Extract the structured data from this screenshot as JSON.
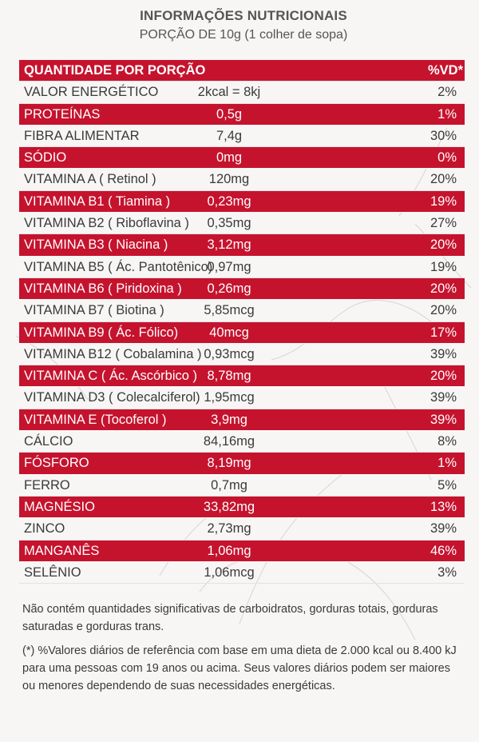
{
  "header": {
    "title": "INFORMAÇÕES NUTRICIONAIS",
    "subtitle": "PORÇÃO DE 10g (1 colher de sopa)"
  },
  "table": {
    "head": {
      "name": "QUANTIDADE POR PORÇÃO",
      "amount": "",
      "vd": "%VD*"
    },
    "rows": [
      {
        "name": "VALOR ENERGÉTICO",
        "amount": "2kcal = 8kj",
        "vd": "2%"
      },
      {
        "name": "PROTEÍNAS",
        "amount": "0,5g",
        "vd": "1%"
      },
      {
        "name": "FIBRA ALIMENTAR",
        "amount": "7,4g",
        "vd": "30%"
      },
      {
        "name": "SÓDIO",
        "amount": "0mg",
        "vd": "0%"
      },
      {
        "name": "VITAMINA A ( Retinol )",
        "amount": "120mg",
        "vd": "20%"
      },
      {
        "name": "VITAMINA B1 ( Tiamina )",
        "amount": "0,23mg",
        "vd": "19%"
      },
      {
        "name": "VITAMINA B2 ( Riboflavina )",
        "amount": "0,35mg",
        "vd": "27%"
      },
      {
        "name": "VITAMINA B3 ( Niacina )",
        "amount": "3,12mg",
        "vd": "20%"
      },
      {
        "name": "VITAMINA B5 ( Ác. Pantotênico)",
        "amount": "0,97mg",
        "vd": "19%"
      },
      {
        "name": "VITAMINA B6 ( Piridoxina )",
        "amount": "0,26mg",
        "vd": "20%"
      },
      {
        "name": "VITAMINA B7 ( Biotina )",
        "amount": "5,85mcg",
        "vd": "20%"
      },
      {
        "name": "VITAMINA B9 ( Ác. Fólico)",
        "amount": "40mcg",
        "vd": "17%"
      },
      {
        "name": "VITAMINA B12 ( Cobalamina )",
        "amount": "0,93mcg",
        "vd": "39%"
      },
      {
        "name": "VITAMINA C ( Ác. Ascórbico )",
        "amount": "8,78mg",
        "vd": "20%"
      },
      {
        "name": "VITAMINA D3 ( Colecalciferol)",
        "amount": "1,95mcg",
        "vd": "39%"
      },
      {
        "name": "VITAMINA E (Tocoferol )",
        "amount": "3,9mg",
        "vd": "39%"
      },
      {
        "name": "CÁLCIO",
        "amount": "84,16mg",
        "vd": "8%"
      },
      {
        "name": "FÓSFORO",
        "amount": "8,19mg",
        "vd": "1%"
      },
      {
        "name": "FERRO",
        "amount": "0,7mg",
        "vd": "5%"
      },
      {
        "name": "MAGNÉSIO",
        "amount": "33,82mg",
        "vd": "13%"
      },
      {
        "name": "ZINCO",
        "amount": "2,73mg",
        "vd": "39%"
      },
      {
        "name": "MANGANÊS",
        "amount": "1,06mg",
        "vd": "46%"
      },
      {
        "name": "SELÊNIO",
        "amount": "1,06mcg",
        "vd": "3%"
      }
    ]
  },
  "notes": {
    "line1": "Não contém quantidades significativas de carboidratos, gorduras totais, gorduras saturadas e gorduras trans.",
    "line2": "(*) %Valores diários de referência com base em uma dieta de 2.000 kcal ou 8.400 kJ para uma pessoas com 19 anos ou acima. Seus valores diários podem ser maiores ou menores dependendo de suas necessidades energéticas."
  },
  "colors": {
    "accent": "#c5132e",
    "background": "#f7f6f5",
    "text": "#3a3a3a"
  }
}
